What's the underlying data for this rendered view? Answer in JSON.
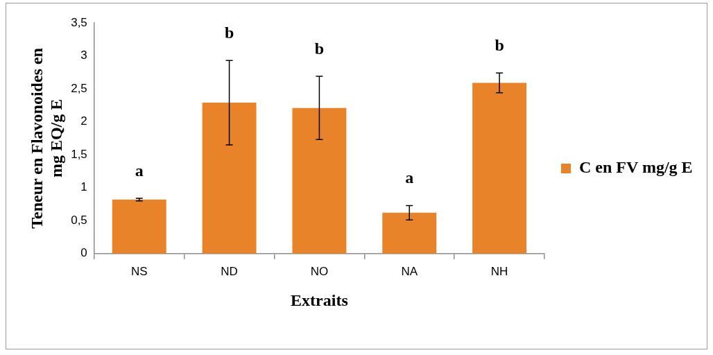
{
  "chart_data": {
    "type": "bar",
    "xlabel": "Extraits",
    "ylabel": "Teneur en Flavonoides en mg EQ/g E",
    "categories": [
      "NS",
      "ND",
      "NO",
      "NA",
      "NH"
    ],
    "series": [
      {
        "name": "C en FV mg/g E",
        "color": "#e8832a",
        "values": [
          0.82,
          2.29,
          2.21,
          0.62,
          2.59
        ],
        "errors": [
          0.02,
          0.64,
          0.48,
          0.11,
          0.15
        ]
      }
    ],
    "ylim": [
      0,
      3.5
    ],
    "yticks": [
      0,
      {
        "value": 0.5,
        "label": "0,5"
      },
      1,
      {
        "value": 1.5,
        "label": "1,5"
      },
      2,
      {
        "value": 2.5,
        "label": "2,5"
      },
      3,
      {
        "value": 3.5,
        "label": "3,5"
      }
    ],
    "grid": false,
    "legend": "right",
    "annotations": [
      "a",
      "b",
      "b",
      "a",
      "b"
    ]
  }
}
